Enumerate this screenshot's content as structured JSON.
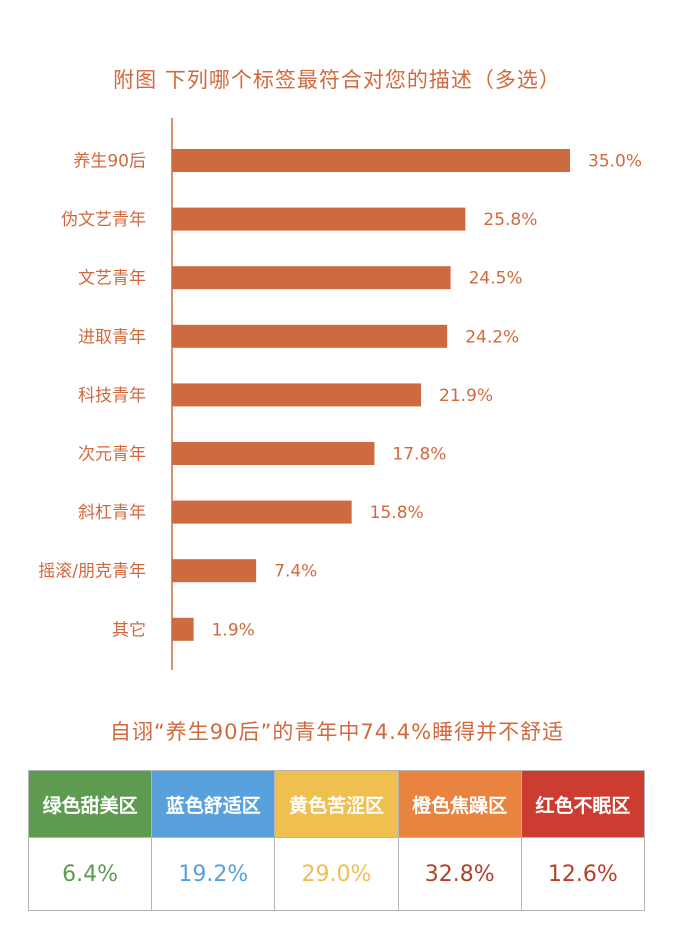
{
  "chart_title": "附图  下列哪个标签最符合对您的描述（多选）",
  "chart_data": {
    "type": "bar",
    "orientation": "horizontal",
    "title": "附图  下列哪个标签最符合对您的描述（多选）",
    "categories": [
      "养生90后",
      "伪文艺青年",
      "文艺青年",
      "进取青年",
      "科技青年",
      "次元青年",
      "斜杠青年",
      "摇滚/朋克青年",
      "其它"
    ],
    "values": [
      35.0,
      25.8,
      24.5,
      24.2,
      21.9,
      17.8,
      15.8,
      7.4,
      1.9
    ],
    "value_labels": [
      "35.0%",
      "25.8%",
      "24.5%",
      "24.2%",
      "21.9%",
      "17.8%",
      "15.8%",
      "7.4%",
      "1.9%"
    ],
    "unit": "%",
    "xlim": [
      0,
      35.0
    ],
    "bar_color": "#cd6a40",
    "grid": false
  },
  "subtitle": "自诩“养生90后”的青年中74.4%睡得并不舒适",
  "sleep_table": {
    "columns": [
      {
        "label": "绿色甜美区",
        "value": "6.4%",
        "header_color": "#5e9a4f",
        "value_color": "#5e9a4f"
      },
      {
        "label": "蓝色舒适区",
        "value": "19.2%",
        "header_color": "#58a1dc",
        "value_color": "#58a1dc"
      },
      {
        "label": "黄色苦涩区",
        "value": "29.0%",
        "header_color": "#efbf4f",
        "value_color": "#efbf4f"
      },
      {
        "label": "橙色焦躁区",
        "value": "32.8%",
        "header_color": "#e98440",
        "value_color": "#b2402c"
      },
      {
        "label": "红色不眠区",
        "value": "12.6%",
        "header_color": "#cc3c30",
        "value_color": "#b2402c"
      }
    ]
  }
}
